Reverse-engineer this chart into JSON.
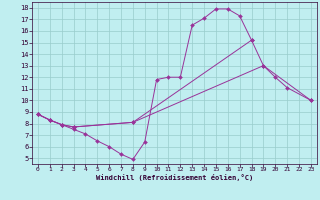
{
  "xlabel": "Windchill (Refroidissement éolien,°C)",
  "bg_color": "#c0eef0",
  "line_color": "#993399",
  "grid_color": "#99cccc",
  "xlim": [
    -0.5,
    23.5
  ],
  "ylim": [
    4.5,
    18.5
  ],
  "xticks": [
    0,
    1,
    2,
    3,
    4,
    5,
    6,
    7,
    8,
    9,
    10,
    11,
    12,
    13,
    14,
    15,
    16,
    17,
    18,
    19,
    20,
    21,
    22,
    23
  ],
  "yticks": [
    5,
    6,
    7,
    8,
    9,
    10,
    11,
    12,
    13,
    14,
    15,
    16,
    17,
    18
  ],
  "line1_x": [
    0,
    1,
    2,
    3,
    4,
    5,
    6,
    7,
    8,
    9,
    10,
    11,
    12,
    13,
    14,
    15,
    16,
    17,
    18,
    19,
    20,
    21,
    22,
    23
  ],
  "line1_y": [
    8.8,
    8.3,
    7.9,
    7.5,
    7.1,
    6.5,
    6.0,
    5.35,
    4.9,
    6.4,
    11.8,
    12.0,
    12.0,
    16.5,
    17.1,
    17.9,
    17.9,
    17.3,
    15.2,
    null,
    null,
    null,
    null,
    null
  ],
  "line2_x": [
    0,
    1,
    2,
    3,
    4,
    5,
    6,
    7,
    8,
    9,
    10,
    11,
    12,
    13,
    14,
    15,
    16,
    17,
    18,
    19,
    20,
    21,
    22,
    23
  ],
  "line2_y": [
    8.8,
    8.3,
    7.9,
    7.7,
    null,
    null,
    null,
    null,
    8.1,
    null,
    null,
    null,
    null,
    null,
    null,
    null,
    null,
    null,
    15.2,
    13.0,
    12.0,
    11.1,
    null,
    10.0
  ],
  "line3_x": [
    0,
    1,
    2,
    3,
    4,
    5,
    6,
    7,
    8,
    9,
    10,
    11,
    12,
    13,
    14,
    15,
    16,
    17,
    18,
    19,
    20,
    21,
    22,
    23
  ],
  "line3_y": [
    8.8,
    8.3,
    7.9,
    7.7,
    null,
    null,
    null,
    null,
    8.1,
    null,
    null,
    null,
    null,
    null,
    null,
    null,
    null,
    null,
    null,
    13.0,
    null,
    null,
    null,
    10.0
  ]
}
